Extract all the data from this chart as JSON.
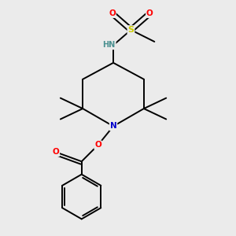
{
  "background_color": "#ebebeb",
  "atom_colors": {
    "C": "#000000",
    "N": "#0000cc",
    "O": "#ff0000",
    "S": "#cccc00",
    "H": "#4a9090"
  },
  "bond_color": "#000000",
  "bond_width": 1.4,
  "figsize": [
    3.0,
    3.0
  ],
  "dpi": 100,
  "font_size": 7.5
}
